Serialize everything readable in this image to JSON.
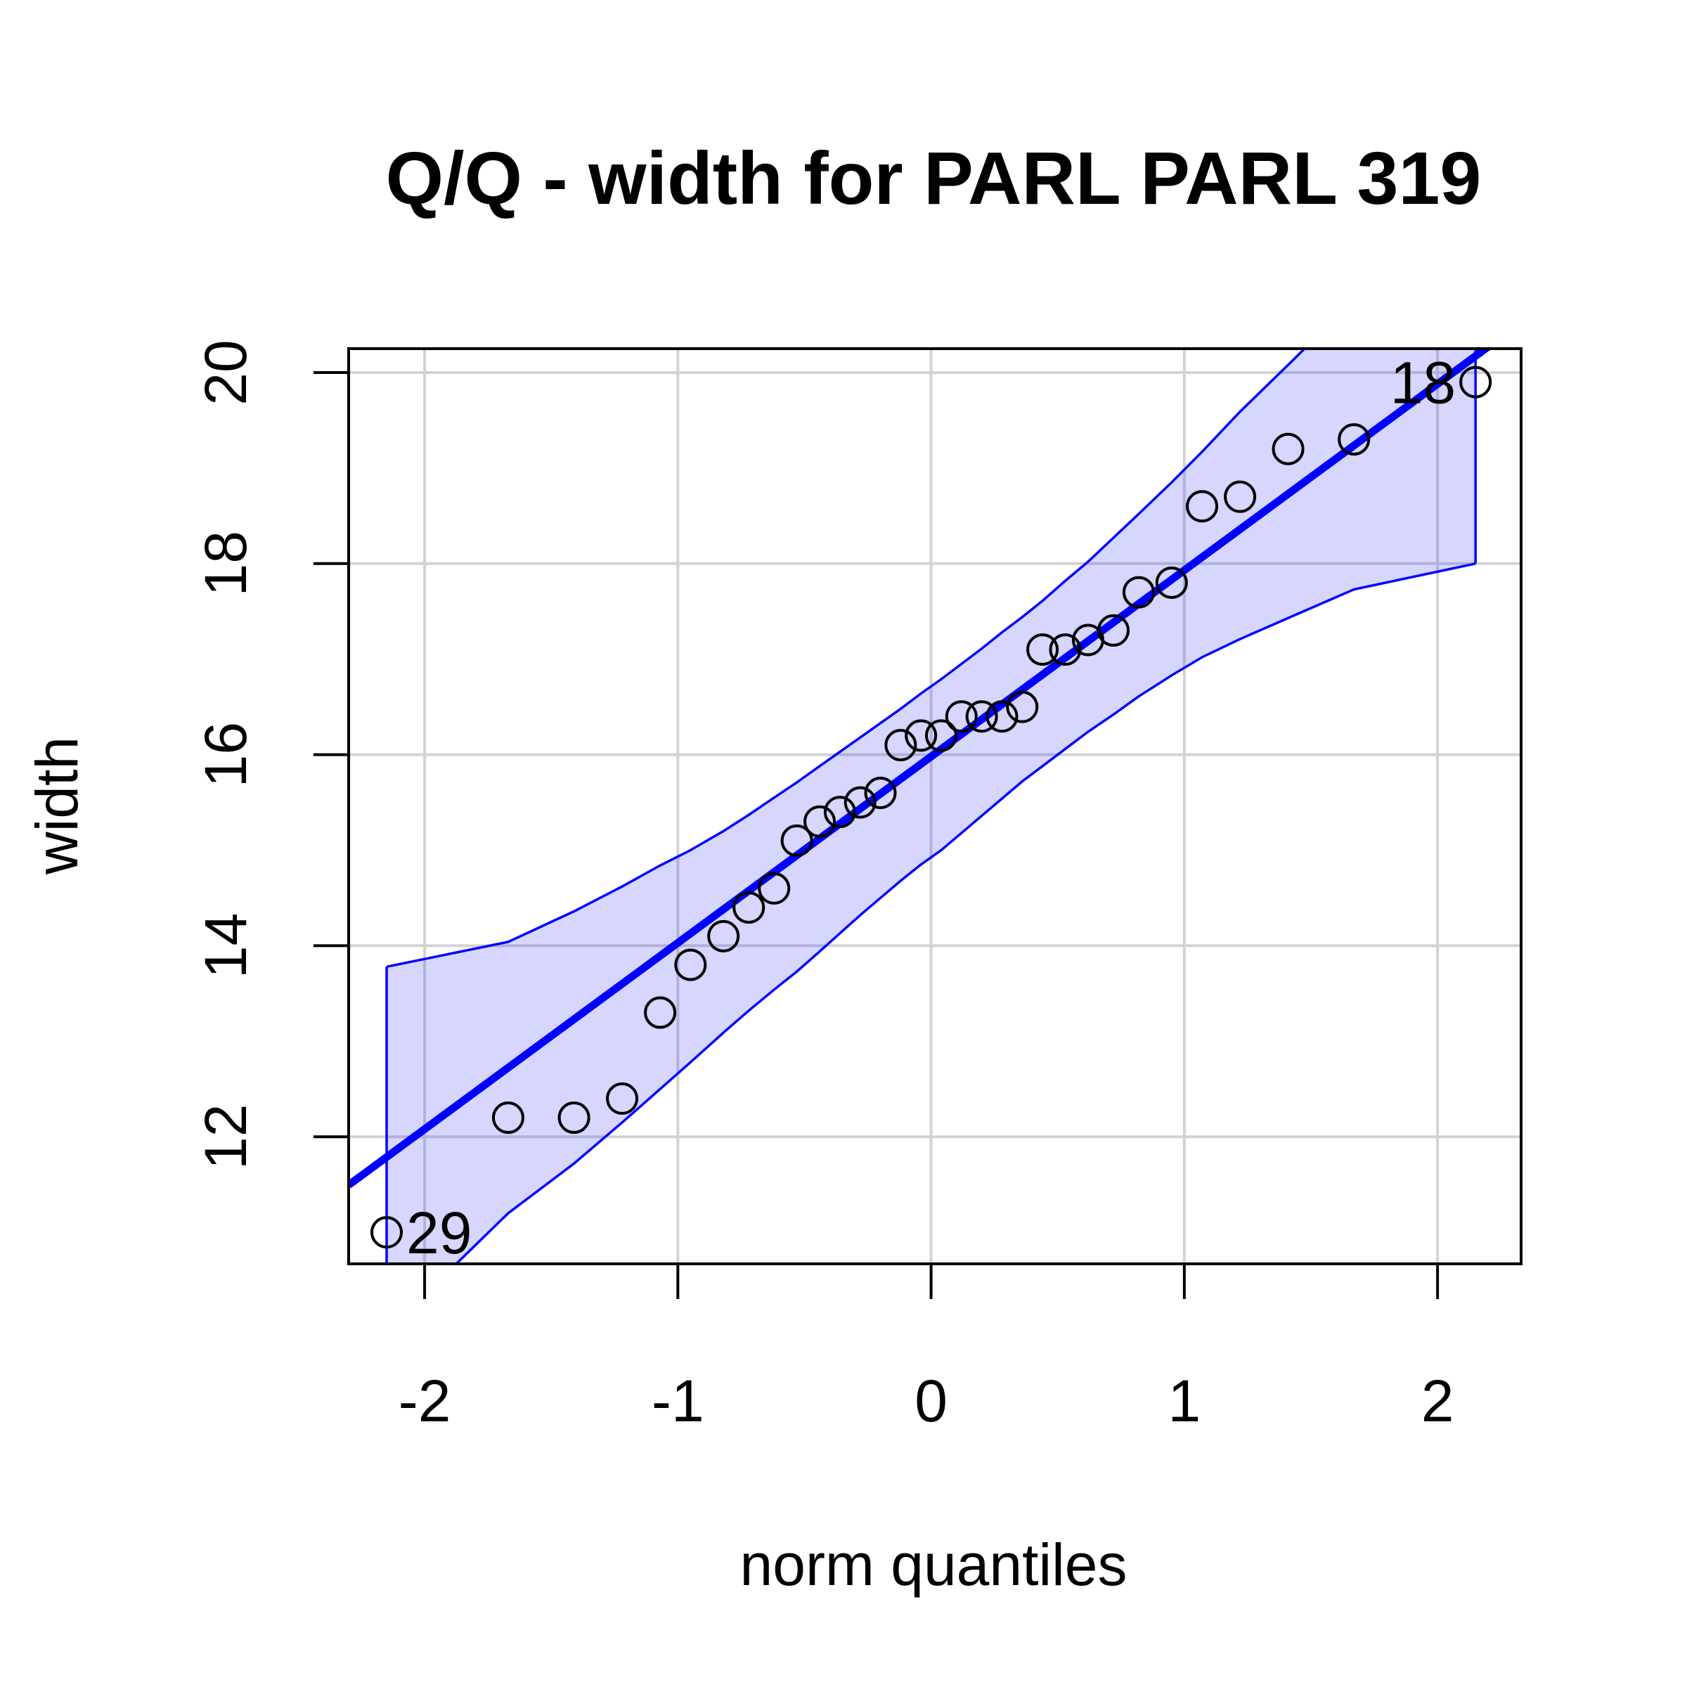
{
  "chart_data": {
    "type": "scatter",
    "title": "Q/Q - width for PARL PARL 319",
    "xlabel": "norm quantiles",
    "ylabel": "width",
    "xlim": [
      -2.3,
      2.33
    ],
    "ylim": [
      10.67,
      20.25
    ],
    "x_ticks": [
      -2,
      -1,
      0,
      1,
      2
    ],
    "y_ticks": [
      12,
      14,
      16,
      18,
      20
    ],
    "x_tick_labels": [
      "-2",
      "-1",
      "0",
      "1",
      "2"
    ],
    "y_tick_labels": [
      "12",
      "14",
      "16",
      "18",
      "20"
    ],
    "grid": true,
    "colors": {
      "reference_line": "#0000ff",
      "band_fill": "#0000ff",
      "points": "#000000",
      "grid": "#d3d3d3"
    },
    "series": [
      {
        "x": [
          -2.15,
          -1.67,
          -1.41,
          -1.22,
          -1.07,
          -0.95,
          -0.82,
          -0.72,
          -0.62,
          -0.53,
          -0.44,
          -0.36,
          -0.28,
          -0.2,
          -0.12,
          -0.04,
          0.04,
          0.12,
          0.2,
          0.28,
          0.36,
          0.44,
          0.53,
          0.62,
          0.72,
          0.82,
          0.95,
          1.07,
          1.22,
          1.41,
          1.67,
          2.15
        ],
        "y": [
          11.0,
          12.2,
          12.2,
          12.4,
          13.3,
          13.8,
          14.1,
          14.4,
          14.6,
          15.1,
          15.3,
          15.4,
          15.5,
          15.6,
          16.1,
          16.2,
          16.2,
          16.4,
          16.4,
          16.4,
          16.5,
          17.1,
          17.1,
          17.2,
          17.3,
          17.7,
          17.8,
          18.6,
          18.7,
          19.2,
          19.3,
          19.9
        ]
      }
    ],
    "reference_line": {
      "intercept": 15.98,
      "slope": 1.95
    },
    "confidence_band": {
      "x": [
        -2.15,
        -1.67,
        -1.41,
        -1.22,
        -1.07,
        -0.95,
        -0.82,
        -0.72,
        -0.62,
        -0.53,
        -0.44,
        -0.36,
        -0.28,
        -0.2,
        -0.12,
        -0.04,
        0.04,
        0.12,
        0.2,
        0.28,
        0.36,
        0.44,
        0.53,
        0.62,
        0.72,
        0.82,
        0.95,
        1.07,
        1.22,
        1.41,
        1.67,
        2.15
      ],
      "upper": [
        13.78,
        14.04,
        14.36,
        14.62,
        14.84,
        15.0,
        15.2,
        15.37,
        15.55,
        15.71,
        15.88,
        16.03,
        16.18,
        16.33,
        16.48,
        16.64,
        16.79,
        16.95,
        17.11,
        17.28,
        17.44,
        17.61,
        17.82,
        18.02,
        18.27,
        18.52,
        18.85,
        19.17,
        19.59,
        20.08,
        20.76,
        22.0
      ],
      "lower": [
        9.96,
        11.2,
        11.72,
        12.15,
        12.5,
        12.78,
        13.09,
        13.32,
        13.54,
        13.73,
        13.94,
        14.13,
        14.32,
        14.5,
        14.68,
        14.85,
        15.0,
        15.18,
        15.36,
        15.54,
        15.72,
        15.88,
        16.06,
        16.24,
        16.42,
        16.61,
        16.83,
        17.02,
        17.21,
        17.43,
        17.73,
        18.0
      ]
    },
    "annotations": [
      {
        "text": "29",
        "x": -2.15,
        "y": 11.0
      },
      {
        "text": "18",
        "x": 2.15,
        "y": 19.9
      }
    ]
  }
}
